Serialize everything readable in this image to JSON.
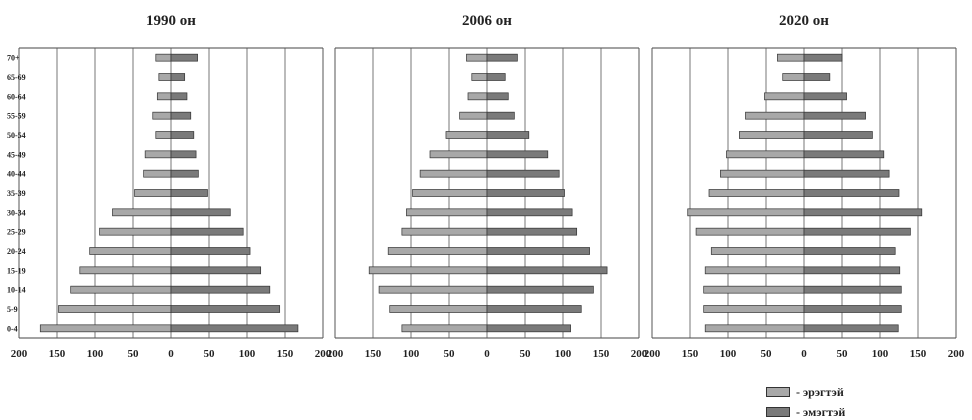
{
  "chart_data": {
    "type": "bar",
    "orientation": "horizontal",
    "layout": "population-pyramid",
    "age_groups": [
      "0-4",
      "5-9",
      "10-14",
      "15-19",
      "20-24",
      "25-29",
      "30-34",
      "35-39",
      "40-44",
      "45-49",
      "50-54",
      "55-59",
      "60-64",
      "65-69",
      "70+"
    ],
    "x_ticks": [
      "200",
      "150",
      "100",
      "50",
      "0",
      "50",
      "100",
      "150",
      "200"
    ],
    "xlim": [
      -200,
      200
    ],
    "grid": "vertical lines at 50 intervals",
    "legend_placement": "bottom-right",
    "legend": [
      {
        "label": "- эрэгтэй",
        "color": "#a8a8a8"
      },
      {
        "label": "- эмэгтэй",
        "color": "#7a7a7a"
      }
    ],
    "panels": [
      {
        "title": "1990 он",
        "male": [
          172,
          148,
          132,
          120,
          107,
          94,
          77,
          48,
          36,
          34,
          20,
          24,
          18,
          16,
          20
        ],
        "female": [
          167,
          143,
          130,
          118,
          104,
          95,
          78,
          48,
          36,
          33,
          30,
          26,
          21,
          18,
          35
        ]
      },
      {
        "title": "2006 он",
        "male": [
          112,
          128,
          142,
          155,
          130,
          112,
          106,
          98,
          88,
          75,
          54,
          36,
          25,
          20,
          27
        ],
        "female": [
          110,
          124,
          140,
          158,
          135,
          118,
          112,
          102,
          95,
          80,
          55,
          36,
          28,
          24,
          40
        ]
      },
      {
        "title": "2020 он",
        "male": [
          130,
          132,
          132,
          130,
          122,
          142,
          153,
          125,
          110,
          102,
          85,
          77,
          52,
          28,
          35
        ],
        "female": [
          124,
          128,
          128,
          126,
          120,
          140,
          155,
          125,
          112,
          105,
          90,
          81,
          56,
          34,
          50
        ]
      }
    ]
  }
}
